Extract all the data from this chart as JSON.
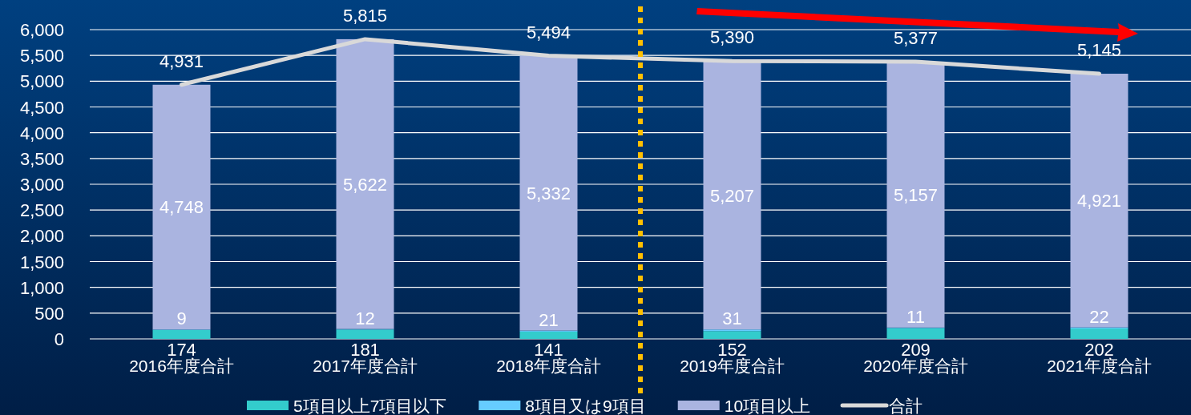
{
  "chart_data": {
    "type": "bar",
    "stacked": true,
    "categories": [
      "2016年度合計",
      "2017年度合計",
      "2018年度合計",
      "2019年度合計",
      "2020年度合計",
      "2021年度合計"
    ],
    "series": [
      {
        "name": "5項目以上7項目以下",
        "color": "#33cccc",
        "values": [
          174,
          181,
          141,
          152,
          209,
          202
        ],
        "value_labels": [
          "174",
          "181",
          "141",
          "152",
          "209",
          "202"
        ]
      },
      {
        "name": "8項目又は9項目",
        "color": "#66ccff",
        "values": [
          9,
          12,
          21,
          31,
          11,
          22
        ],
        "value_labels": [
          "9",
          "12",
          "21",
          "31",
          "11",
          "22"
        ]
      },
      {
        "name": "10項目以上",
        "color": "#aab4e0",
        "values": [
          4748,
          5622,
          5332,
          5207,
          5157,
          4921
        ],
        "value_labels": [
          "4,748",
          "5,622",
          "5,332",
          "5,207",
          "5,157",
          "4,921"
        ]
      },
      {
        "name": "合計",
        "type": "line",
        "color": "#d9d9d9",
        "values": [
          4931,
          5815,
          5494,
          5390,
          5377,
          5145
        ],
        "value_labels": [
          "4,931",
          "5,815",
          "5,494",
          "5,390",
          "5,377",
          "5,145"
        ]
      }
    ],
    "ylim": [
      0,
      6000
    ],
    "yticks": [
      0,
      {
        "value": 500,
        "label": "500"
      },
      {
        "value": 1000,
        "label": "1,000"
      },
      {
        "value": 1500,
        "label": "1,500"
      },
      {
        "value": 2000,
        "label": "2,000"
      },
      {
        "value": 2500,
        "label": "2,500"
      },
      {
        "value": 3000,
        "label": "3,000"
      },
      {
        "value": 3500,
        "label": "3,500"
      },
      {
        "value": 4000,
        "label": "4,000"
      },
      {
        "value": 4500,
        "label": "4,500"
      },
      {
        "value": 5000,
        "label": "5,000"
      },
      {
        "value": 5500,
        "label": "5,500"
      },
      {
        "value": 6000,
        "label": "6,000"
      }
    ],
    "grid": "y",
    "legend": "bottom"
  }
}
